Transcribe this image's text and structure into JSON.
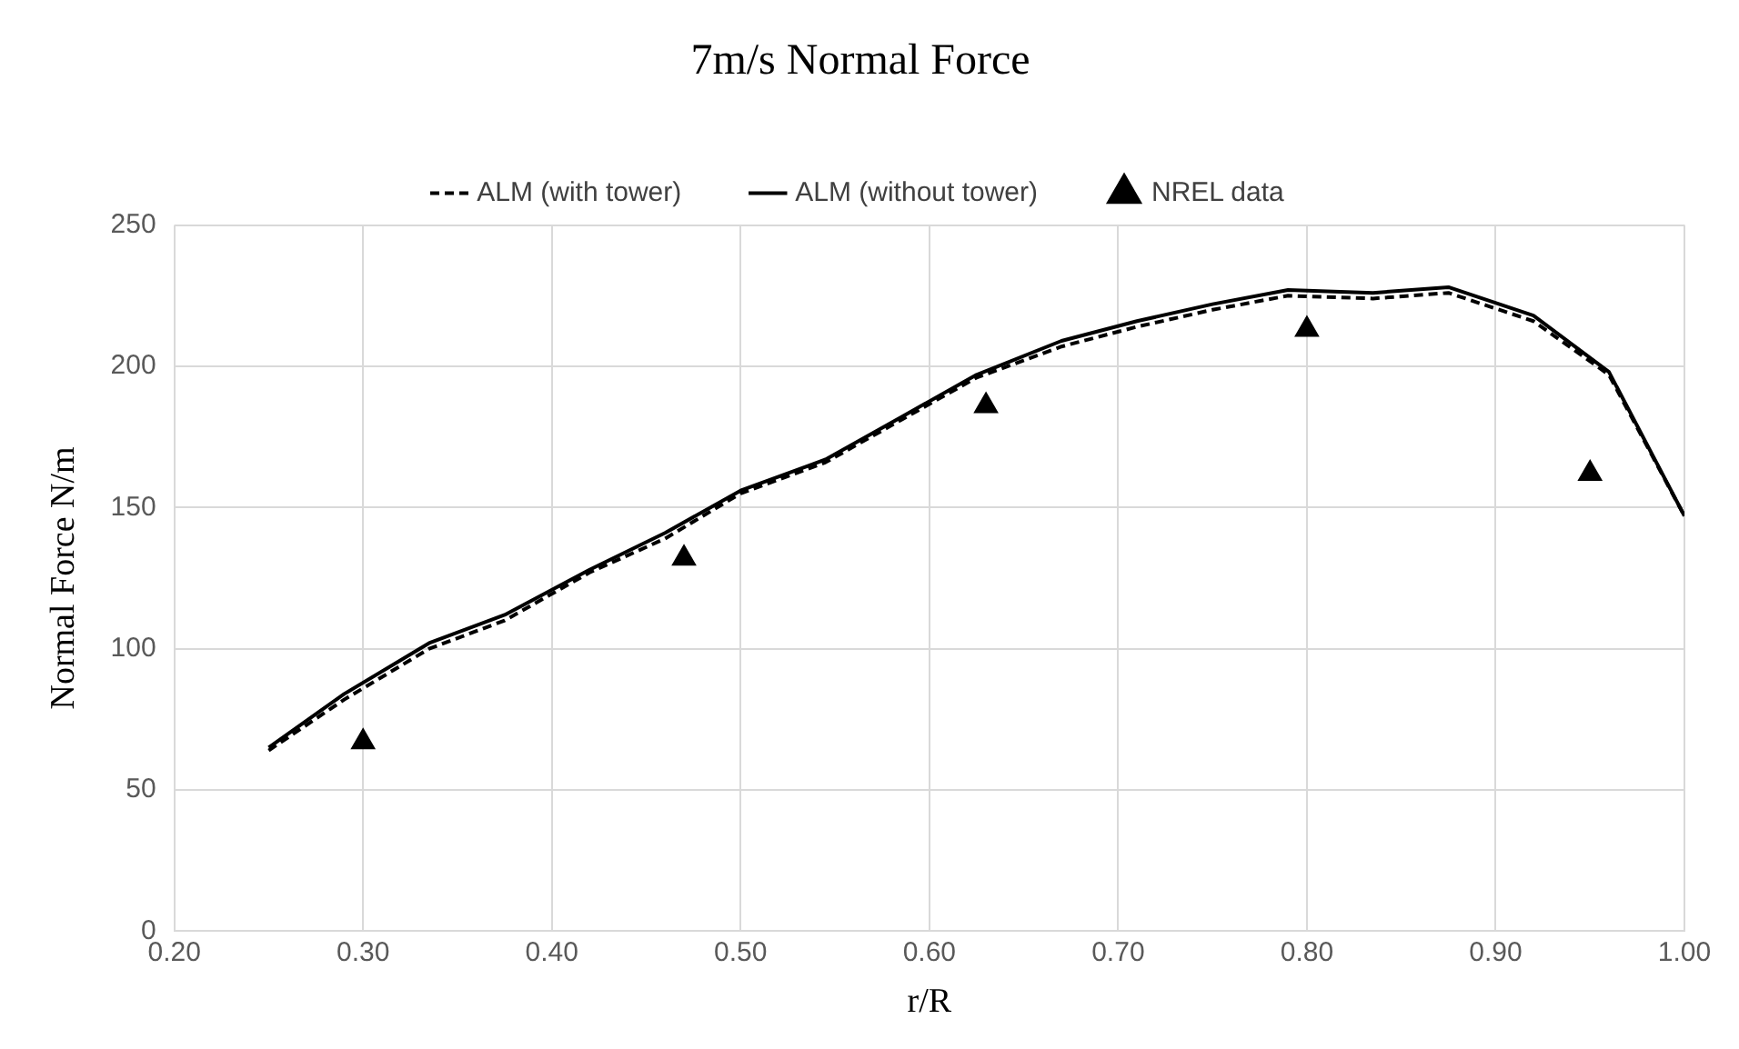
{
  "chart_data": {
    "type": "line",
    "title": "7m/s Normal Force",
    "xlabel": "r/R",
    "ylabel": "Normal Force N/m",
    "xlim": [
      0.2,
      1.0
    ],
    "xticks": [
      {
        "value": 0.2,
        "label": "0.20"
      },
      {
        "value": 0.3,
        "label": "0.30"
      },
      {
        "value": 0.4,
        "label": "0.40"
      },
      {
        "value": 0.5,
        "label": "0.50"
      },
      {
        "value": 0.6,
        "label": "0.60"
      },
      {
        "value": 0.7,
        "label": "0.70"
      },
      {
        "value": 0.8,
        "label": "0.80"
      },
      {
        "value": 0.9,
        "label": "0.90"
      },
      {
        "value": 1.0,
        "label": "1.00"
      }
    ],
    "ylim": [
      0,
      250
    ],
    "yticks": [
      0,
      50,
      100,
      150,
      200,
      250
    ],
    "grid": true,
    "legend": "top",
    "marker": "none",
    "series": [
      {
        "name": "ALM (with tower)",
        "line_style": "dashed",
        "color": "#000000",
        "x": [
          0.25,
          0.29,
          0.335,
          0.375,
          0.42,
          0.46,
          0.5,
          0.545,
          0.585,
          0.625,
          0.67,
          0.71,
          0.75,
          0.79,
          0.835,
          0.875,
          0.92,
          0.96,
          1.0
        ],
        "values": [
          64,
          82,
          100,
          110,
          127,
          139,
          155,
          166,
          181,
          196,
          207,
          214,
          220,
          225,
          224,
          226,
          216,
          197,
          147
        ]
      },
      {
        "name": "ALM (without tower)",
        "line_style": "solid",
        "color": "#000000",
        "x": [
          0.25,
          0.29,
          0.335,
          0.375,
          0.42,
          0.46,
          0.5,
          0.545,
          0.585,
          0.625,
          0.67,
          0.71,
          0.75,
          0.79,
          0.835,
          0.875,
          0.92,
          0.96,
          1.0
        ],
        "values": [
          65,
          84,
          102,
          112,
          128,
          141,
          156,
          167,
          182,
          197,
          209,
          216,
          222,
          227,
          226,
          228,
          218,
          198,
          147
        ]
      },
      {
        "name": "NREL data",
        "type": "scatter",
        "marker": "triangle",
        "color": "#000000",
        "x": [
          0.3,
          0.47,
          0.63,
          0.8,
          0.95
        ],
        "values": [
          67,
          132,
          186,
          213,
          162
        ]
      }
    ]
  }
}
